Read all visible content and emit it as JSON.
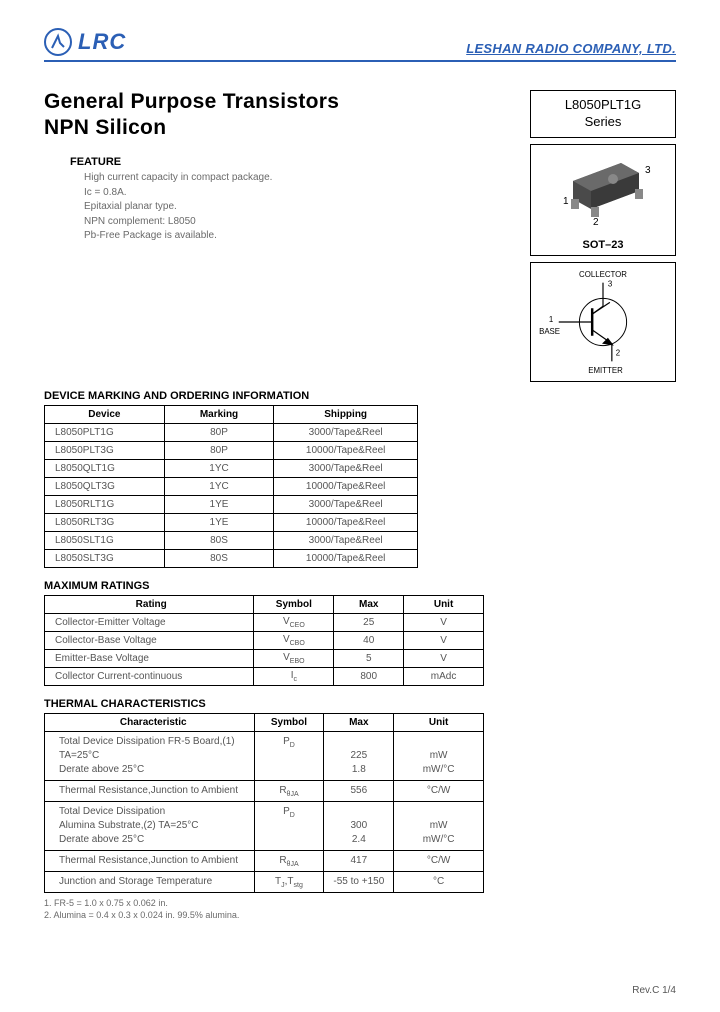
{
  "header": {
    "logo_text": "LRC",
    "company": "LESHAN RADIO COMPANY, LTD.",
    "logo_color": "#2b5fb5"
  },
  "title": {
    "line1": "General Purpose Transistors",
    "line2": "NPN Silicon"
  },
  "series_box": {
    "line1": "L8050PLT1G",
    "line2": "Series"
  },
  "package": {
    "label": "SOT–23",
    "pin1": "1",
    "pin2": "2",
    "pin3": "3"
  },
  "symbol": {
    "collector": "COLLECTOR",
    "base": "BASE",
    "emitter": "EMITTER",
    "p1": "1",
    "p2": "2",
    "p3": "3"
  },
  "feature": {
    "heading": "FEATURE",
    "lines": [
      "High current capacity in compact package.",
      "Ic = 0.8A.",
      "Epitaxial planar type.",
      "NPN complement: L8050",
      "Pb-Free Package is available."
    ]
  },
  "marking": {
    "heading": "DEVICE MARKING AND ORDERING INFORMATION",
    "cols": [
      "Device",
      "Marking",
      "Shipping"
    ],
    "rows": [
      [
        "L8050PLT1G",
        "80P",
        "3000/Tape&Reel"
      ],
      [
        "L8050PLT3G",
        "80P",
        "10000/Tape&Reel"
      ],
      [
        "L8050QLT1G",
        "1YC",
        "3000/Tape&Reel"
      ],
      [
        "L8050QLT3G",
        "1YC",
        "10000/Tape&Reel"
      ],
      [
        "L8050RLT1G",
        "1YE",
        "3000/Tape&Reel"
      ],
      [
        "L8050RLT3G",
        "1YE",
        "10000/Tape&Reel"
      ],
      [
        "L8050SLT1G",
        "80S",
        "3000/Tape&Reel"
      ],
      [
        "L8050SLT3G",
        "80S",
        "10000/Tape&Reel"
      ]
    ]
  },
  "max": {
    "heading": "MAXIMUM RATINGS",
    "cols": [
      "Rating",
      "Symbol",
      "Max",
      "Unit"
    ],
    "rows": [
      [
        "Collector-Emitter Voltage",
        "VCEO",
        "25",
        "V"
      ],
      [
        "Collector-Base Voltage",
        "VCBO",
        "40",
        "V"
      ],
      [
        "Emitter-Base Voltage",
        "VEBO",
        "5",
        "V"
      ],
      [
        "Collector Current-continuous",
        "Ic",
        "800",
        "mAdc"
      ]
    ]
  },
  "thermal": {
    "heading": "THERMAL CHARACTERISTICS",
    "cols": [
      "Characteristic",
      "Symbol",
      "Max",
      "Unit"
    ],
    "rows": [
      {
        "c": [
          "Total Device Dissipation FR-5 Board,(1)",
          "TA=25°C",
          "Derate above 25°C"
        ],
        "sym": "PD",
        "max": [
          "",
          "225",
          "1.8"
        ],
        "unit": [
          "",
          "mW",
          "mW/°C"
        ]
      },
      {
        "c": [
          "Thermal Resistance,Junction to Ambient"
        ],
        "sym": "RθJA",
        "max": [
          "556"
        ],
        "unit": [
          "°C/W"
        ]
      },
      {
        "c": [
          "Total Device Dissipation",
          "Alumina Substrate,(2) TA=25°C",
          "Derate above 25°C"
        ],
        "sym": "PD",
        "max": [
          "",
          "300",
          "2.4"
        ],
        "unit": [
          "",
          "mW",
          "mW/°C"
        ]
      },
      {
        "c": [
          "Thermal Resistance,Junction to Ambient"
        ],
        "sym": "RθJA",
        "max": [
          "417"
        ],
        "unit": [
          "°C/W"
        ]
      },
      {
        "c": [
          "Junction and Storage Temperature"
        ],
        "sym": "TJ,Tstg",
        "max": [
          "-55 to +150"
        ],
        "unit": [
          "°C"
        ]
      }
    ]
  },
  "footnotes": [
    "1. FR-5 = 1.0 x 0.75 x 0.062 in.",
    "2. Alumina = 0.4 x 0.3 x 0.024 in. 99.5% alumina."
  ],
  "footer": "Rev.C 1/4"
}
